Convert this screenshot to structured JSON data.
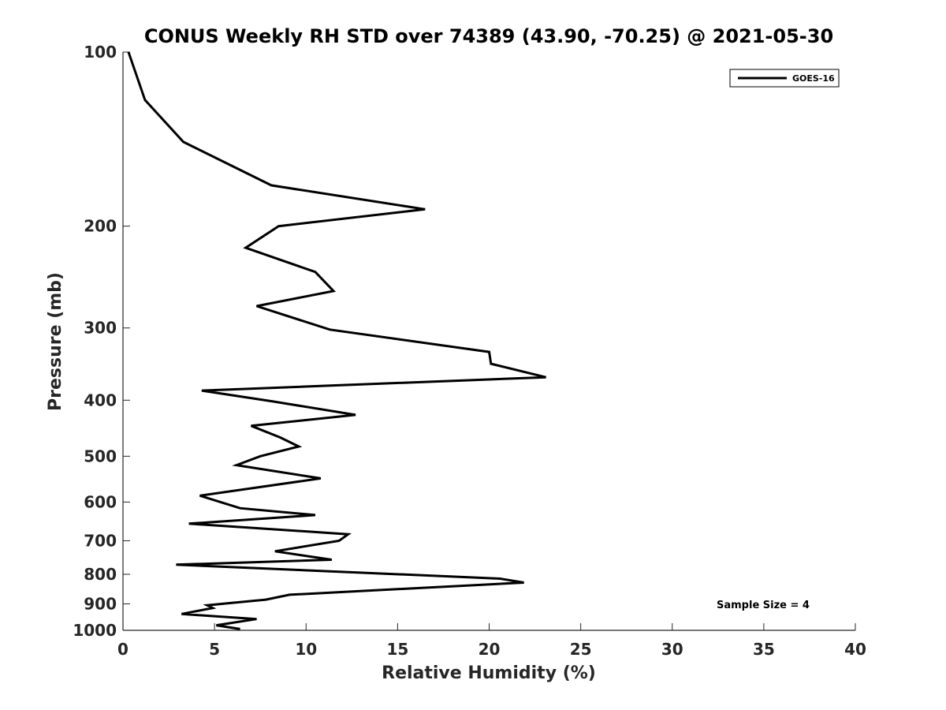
{
  "chart_data": {
    "type": "line",
    "title": "CONUS Weekly RH STD over 74389 (43.90, -70.25) @ 2021-05-30",
    "xlabel": "Relative Humidity (%)",
    "ylabel": "Pressure (mb)",
    "xlim": [
      0,
      40
    ],
    "ylim": [
      100,
      1000
    ],
    "yscale": "log",
    "y_reversed": true,
    "x_ticks": [
      "0",
      "5",
      "10",
      "15",
      "20",
      "25",
      "30",
      "35",
      "40"
    ],
    "y_ticks": [
      "100",
      "200",
      "300",
      "400",
      "500",
      "600",
      "700",
      "800",
      "900",
      "1000"
    ],
    "grid": false,
    "legend_position": "top-right",
    "series": [
      {
        "name": "GOES-16",
        "color": "#000000",
        "points": [
          [
            0.3,
            100
          ],
          [
            1.2,
            121
          ],
          [
            3.3,
            143
          ],
          [
            8.1,
            170
          ],
          [
            16.5,
            187
          ],
          [
            8.5,
            200
          ],
          [
            6.7,
            218
          ],
          [
            10.5,
            240
          ],
          [
            11.5,
            259
          ],
          [
            7.3,
            275
          ],
          [
            11.3,
            302
          ],
          [
            20.0,
            330
          ],
          [
            20.1,
            346
          ],
          [
            23.1,
            365
          ],
          [
            4.3,
            385
          ],
          [
            8.2,
            402
          ],
          [
            12.7,
            424
          ],
          [
            7.0,
            443
          ],
          [
            8.6,
            464
          ],
          [
            9.6,
            481
          ],
          [
            7.5,
            500
          ],
          [
            6.2,
            518
          ],
          [
            10.8,
            546
          ],
          [
            4.2,
            585
          ],
          [
            6.4,
            615
          ],
          [
            10.5,
            632
          ],
          [
            3.6,
            654
          ],
          [
            12.3,
            682
          ],
          [
            11.8,
            700
          ],
          [
            8.3,
            730
          ],
          [
            11.4,
            755
          ],
          [
            2.9,
            770
          ],
          [
            20.6,
            814
          ],
          [
            21.9,
            827
          ],
          [
            9.1,
            868
          ],
          [
            7.8,
            885
          ],
          [
            4.6,
            905
          ],
          [
            4.9,
            915
          ],
          [
            3.2,
            937
          ],
          [
            7.3,
            956
          ],
          [
            5.1,
            980
          ],
          [
            6.4,
            995
          ]
        ]
      }
    ],
    "annotation": "Sample Size = 4"
  }
}
